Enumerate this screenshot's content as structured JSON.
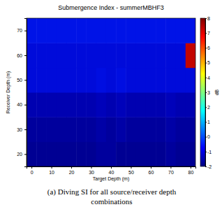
{
  "chart_data": {
    "type": "heatmap",
    "title": "Submergence Index - summerMBHF3",
    "x_label": "Target Depth (m)",
    "y_label": "Receiver Depth (m)",
    "x": [
      0,
      5,
      10,
      15,
      20,
      25,
      30,
      35,
      40,
      45,
      50,
      55,
      60,
      65,
      70,
      75,
      80
    ],
    "y": [
      20,
      30,
      40,
      50,
      60,
      70
    ],
    "z": [
      [
        -1.8,
        -1.8,
        -1.8,
        -1.8,
        -1.8,
        -1.8,
        -1.8,
        -1.7,
        -1.7,
        -1.8,
        -1.8,
        -1.8,
        -1.8,
        -1.8,
        -1.7,
        -1.8,
        -1.8
      ],
      [
        -1.7,
        -1.7,
        -1.7,
        -1.7,
        -1.7,
        -1.7,
        -1.7,
        -1.6,
        -1.7,
        -1.6,
        -1.7,
        -1.7,
        -1.7,
        -1.7,
        -1.6,
        -1.7,
        -1.7
      ],
      [
        -1.5,
        -1.5,
        -1.5,
        -1.5,
        -1.5,
        -1.5,
        -1.5,
        -1.4,
        -1.5,
        -1.4,
        -1.5,
        -1.5,
        -1.5,
        -1.5,
        -1.4,
        -1.5,
        -1.5
      ],
      [
        -1.0,
        -1.0,
        -1.0,
        -1.0,
        -1.0,
        -1.0,
        -1.0,
        -0.9,
        -1.0,
        -0.9,
        -1.0,
        -1.0,
        -1.0,
        -1.0,
        -1.0,
        -1.0,
        -1.0
      ],
      [
        -1.0,
        -1.0,
        -1.0,
        -1.0,
        -1.0,
        -1.0,
        -1.0,
        -1.0,
        -1.0,
        -1.0,
        -1.0,
        -1.0,
        -1.0,
        -1.0,
        -1.0,
        -1.0,
        7.3
      ],
      [
        -0.8,
        -0.8,
        -0.8,
        -0.8,
        -0.8,
        -0.8,
        -0.8,
        -0.8,
        -0.8,
        -0.8,
        -0.8,
        -0.8,
        -0.8,
        -0.8,
        -0.8,
        -0.8,
        -0.8
      ]
    ],
    "xlim": [
      -2.5,
      82.5
    ],
    "ylim": [
      15,
      75
    ],
    "xticks": [
      0,
      10,
      20,
      30,
      40,
      50,
      60,
      70,
      80
    ],
    "yticks": [
      20,
      30,
      40,
      50,
      60,
      70
    ],
    "colorbar": {
      "range": [
        -2,
        8
      ],
      "ticks": [
        -2,
        -1,
        0,
        1,
        2,
        3,
        4,
        5,
        6,
        7,
        8
      ],
      "label": "dB"
    },
    "grid": false,
    "caption": [
      "(a) Diving SI for all source/receiver depth",
      "combinations"
    ]
  }
}
